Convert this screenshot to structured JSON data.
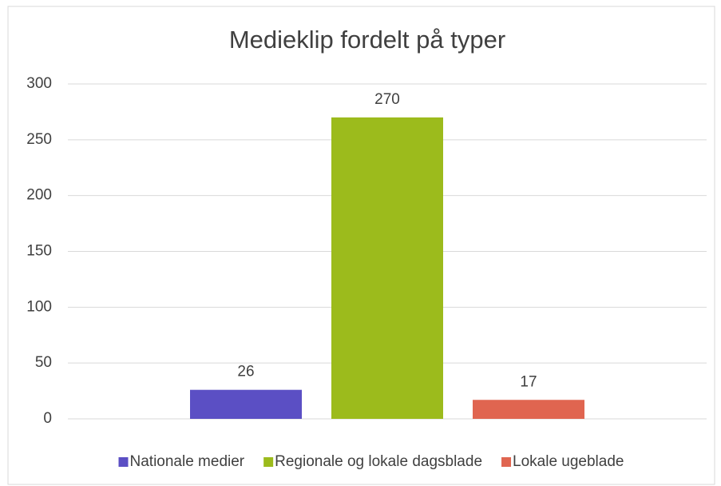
{
  "chart_data": {
    "type": "bar",
    "title": "Medieklip fordelt på typer",
    "categories": [
      null
    ],
    "series": [
      {
        "name": "Nationale medier",
        "color": "#5b4fc4",
        "values": [
          26
        ]
      },
      {
        "name": "Regionale og lokale dagsblade",
        "color": "#9cbb1c",
        "values": [
          270
        ]
      },
      {
        "name": "Lokale ugeblade",
        "color": "#e06550",
        "values": [
          17
        ]
      }
    ],
    "ylim": [
      0,
      300
    ],
    "yticks": [
      0,
      50,
      100,
      150,
      200,
      250,
      300
    ],
    "grid": true,
    "legend": "bottom"
  }
}
